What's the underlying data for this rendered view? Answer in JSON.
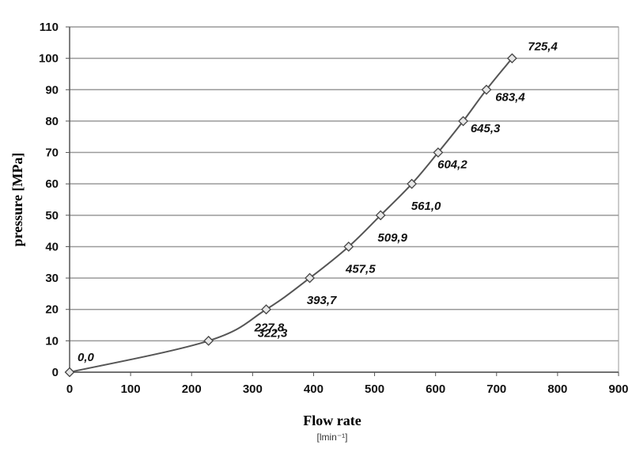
{
  "chart_data": {
    "type": "line",
    "title": "",
    "xlabel": "Flow rate",
    "xunit": "[lmin⁻¹]",
    "ylabel": "pressure  [MPa]",
    "xlim": [
      0,
      900
    ],
    "ylim": [
      0,
      110
    ],
    "xticks": [
      0,
      100,
      200,
      300,
      400,
      500,
      600,
      700,
      800,
      900
    ],
    "yticks": [
      0,
      10,
      20,
      30,
      40,
      50,
      60,
      70,
      80,
      90,
      100,
      110
    ],
    "grid": "horizontal",
    "series": [
      {
        "x": [
          0,
          227.8,
          322.3,
          393.7,
          457.5,
          509.9,
          561.0,
          604.2,
          645.3,
          683.4,
          725.4
        ],
        "y": [
          0,
          10,
          20,
          30,
          40,
          50,
          60,
          70,
          80,
          90,
          100
        ],
        "labels": [
          "0,0",
          "227,8",
          "322,3",
          "393,7",
          "457,5",
          "509,9",
          "561,0",
          "604,2",
          "645,3",
          "683,4",
          "725,4"
        ]
      }
    ]
  }
}
